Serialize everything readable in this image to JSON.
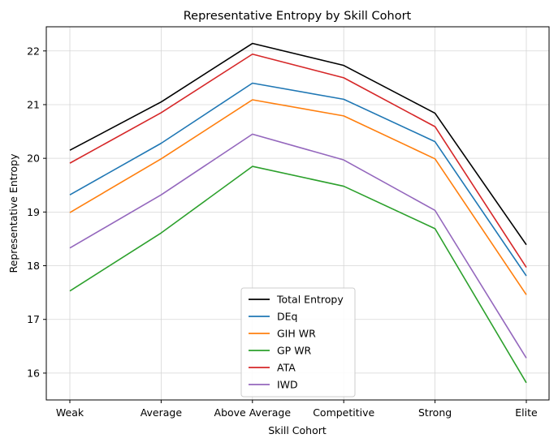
{
  "chart_data": {
    "type": "line",
    "title": "Representative Entropy by Skill Cohort",
    "xlabel": "Skill Cohort",
    "ylabel": "Representative Entropy",
    "categories": [
      "Weak",
      "Average",
      "Above Average",
      "Competitive",
      "Strong",
      "Elite"
    ],
    "ylim": [
      15.5,
      22.45
    ],
    "yticks": [
      16,
      17,
      18,
      19,
      20,
      21,
      22
    ],
    "grid": true,
    "legend_position": "lower center",
    "series": [
      {
        "name": "Total Entropy",
        "color": "#000000",
        "values": [
          20.15,
          21.05,
          22.14,
          21.73,
          20.84,
          18.39
        ]
      },
      {
        "name": "DEq",
        "color": "#1f77b4",
        "values": [
          19.32,
          20.28,
          21.4,
          21.1,
          20.31,
          17.81
        ]
      },
      {
        "name": "GIH WR",
        "color": "#ff7f0e",
        "values": [
          18.99,
          19.99,
          21.09,
          20.79,
          19.99,
          17.46
        ]
      },
      {
        "name": "GP WR",
        "color": "#2ca02c",
        "values": [
          17.53,
          18.61,
          19.85,
          19.48,
          18.69,
          15.82
        ]
      },
      {
        "name": "ATA",
        "color": "#d62728",
        "values": [
          19.91,
          20.85,
          21.94,
          21.5,
          20.59,
          17.97
        ]
      },
      {
        "name": "IWD",
        "color": "#9467bd",
        "values": [
          18.33,
          19.32,
          20.45,
          19.97,
          19.03,
          16.28
        ]
      }
    ]
  }
}
